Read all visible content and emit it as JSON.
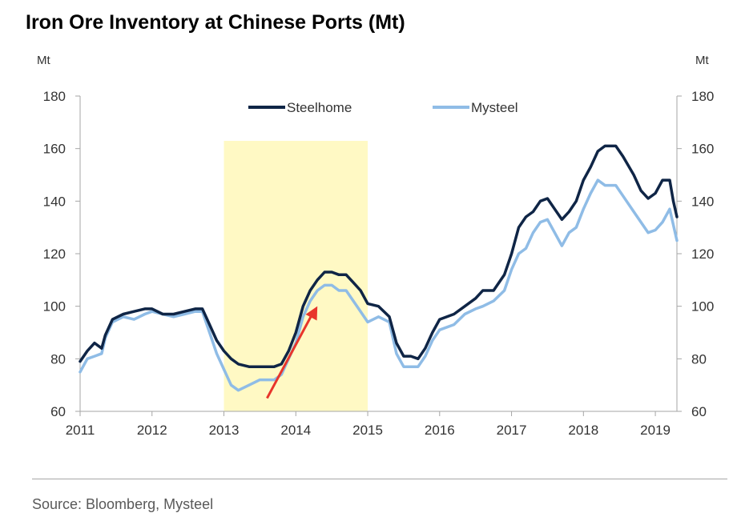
{
  "chart_data": {
    "type": "line",
    "title": "Iron Ore Inventory at Chinese Ports (Mt)",
    "ylabel_left": "Mt",
    "ylabel_right": "Mt",
    "ylim": [
      60,
      180
    ],
    "yticks": [
      60,
      80,
      100,
      120,
      140,
      160,
      180
    ],
    "xlim": [
      2011,
      2019.3
    ],
    "xticks": [
      "2011",
      "2012",
      "2013",
      "2014",
      "2015",
      "2016",
      "2017",
      "2018",
      "2019"
    ],
    "legend_position": "top-center",
    "highlight": {
      "from": 2013,
      "to": 2015,
      "color": "#fff9c4"
    },
    "annotation": {
      "type": "arrow",
      "from": [
        2013.6,
        65
      ],
      "to": [
        2014.3,
        100
      ],
      "color": "#e8352b"
    },
    "series": [
      {
        "name": "Steelhome",
        "color": "#0f2546",
        "points": [
          [
            2011.0,
            79
          ],
          [
            2011.1,
            83
          ],
          [
            2011.2,
            86
          ],
          [
            2011.3,
            84
          ],
          [
            2011.35,
            89
          ],
          [
            2011.45,
            95
          ],
          [
            2011.6,
            97
          ],
          [
            2011.75,
            98
          ],
          [
            2011.9,
            99
          ],
          [
            2012.0,
            99
          ],
          [
            2012.15,
            97
          ],
          [
            2012.3,
            97
          ],
          [
            2012.45,
            98
          ],
          [
            2012.6,
            99
          ],
          [
            2012.7,
            99
          ],
          [
            2012.8,
            93
          ],
          [
            2012.9,
            87
          ],
          [
            2013.0,
            83
          ],
          [
            2013.1,
            80
          ],
          [
            2013.2,
            78
          ],
          [
            2013.35,
            77
          ],
          [
            2013.5,
            77
          ],
          [
            2013.7,
            77
          ],
          [
            2013.8,
            78
          ],
          [
            2013.9,
            83
          ],
          [
            2014.0,
            90
          ],
          [
            2014.1,
            100
          ],
          [
            2014.2,
            106
          ],
          [
            2014.3,
            110
          ],
          [
            2014.4,
            113
          ],
          [
            2014.5,
            113
          ],
          [
            2014.6,
            112
          ],
          [
            2014.7,
            112
          ],
          [
            2014.8,
            109
          ],
          [
            2014.9,
            106
          ],
          [
            2015.0,
            101
          ],
          [
            2015.15,
            100
          ],
          [
            2015.3,
            96
          ],
          [
            2015.4,
            86
          ],
          [
            2015.5,
            81
          ],
          [
            2015.6,
            81
          ],
          [
            2015.7,
            80
          ],
          [
            2015.8,
            84
          ],
          [
            2015.9,
            90
          ],
          [
            2016.0,
            95
          ],
          [
            2016.2,
            97
          ],
          [
            2016.35,
            100
          ],
          [
            2016.5,
            103
          ],
          [
            2016.6,
            106
          ],
          [
            2016.75,
            106
          ],
          [
            2016.9,
            112
          ],
          [
            2017.0,
            120
          ],
          [
            2017.1,
            130
          ],
          [
            2017.2,
            134
          ],
          [
            2017.3,
            136
          ],
          [
            2017.4,
            140
          ],
          [
            2017.5,
            141
          ],
          [
            2017.6,
            137
          ],
          [
            2017.7,
            133
          ],
          [
            2017.8,
            136
          ],
          [
            2017.9,
            140
          ],
          [
            2018.0,
            148
          ],
          [
            2018.1,
            153
          ],
          [
            2018.2,
            159
          ],
          [
            2018.3,
            161
          ],
          [
            2018.45,
            161
          ],
          [
            2018.55,
            157
          ],
          [
            2018.7,
            150
          ],
          [
            2018.8,
            144
          ],
          [
            2018.9,
            141
          ],
          [
            2019.0,
            143
          ],
          [
            2019.1,
            148
          ],
          [
            2019.2,
            148
          ],
          [
            2019.25,
            140
          ],
          [
            2019.3,
            134
          ]
        ]
      },
      {
        "name": "Mysteel",
        "color": "#8fbce6",
        "points": [
          [
            2011.0,
            75
          ],
          [
            2011.1,
            80
          ],
          [
            2011.2,
            81
          ],
          [
            2011.3,
            82
          ],
          [
            2011.35,
            88
          ],
          [
            2011.45,
            94
          ],
          [
            2011.6,
            96
          ],
          [
            2011.75,
            95
          ],
          [
            2011.9,
            97
          ],
          [
            2012.0,
            98
          ],
          [
            2012.15,
            97
          ],
          [
            2012.3,
            96
          ],
          [
            2012.45,
            97
          ],
          [
            2012.6,
            98
          ],
          [
            2012.7,
            98
          ],
          [
            2012.8,
            90
          ],
          [
            2012.9,
            82
          ],
          [
            2013.0,
            76
          ],
          [
            2013.1,
            70
          ],
          [
            2013.2,
            68
          ],
          [
            2013.35,
            70
          ],
          [
            2013.5,
            72
          ],
          [
            2013.7,
            72
          ],
          [
            2013.8,
            74
          ],
          [
            2013.9,
            80
          ],
          [
            2014.0,
            86
          ],
          [
            2014.1,
            96
          ],
          [
            2014.2,
            102
          ],
          [
            2014.3,
            106
          ],
          [
            2014.4,
            108
          ],
          [
            2014.5,
            108
          ],
          [
            2014.6,
            106
          ],
          [
            2014.7,
            106
          ],
          [
            2014.8,
            102
          ],
          [
            2014.9,
            98
          ],
          [
            2015.0,
            94
          ],
          [
            2015.15,
            96
          ],
          [
            2015.3,
            94
          ],
          [
            2015.4,
            82
          ],
          [
            2015.5,
            77
          ],
          [
            2015.6,
            77
          ],
          [
            2015.7,
            77
          ],
          [
            2015.8,
            81
          ],
          [
            2015.9,
            87
          ],
          [
            2016.0,
            91
          ],
          [
            2016.2,
            93
          ],
          [
            2016.35,
            97
          ],
          [
            2016.5,
            99
          ],
          [
            2016.6,
            100
          ],
          [
            2016.75,
            102
          ],
          [
            2016.9,
            106
          ],
          [
            2017.0,
            114
          ],
          [
            2017.1,
            120
          ],
          [
            2017.2,
            122
          ],
          [
            2017.3,
            128
          ],
          [
            2017.4,
            132
          ],
          [
            2017.5,
            133
          ],
          [
            2017.6,
            128
          ],
          [
            2017.7,
            123
          ],
          [
            2017.8,
            128
          ],
          [
            2017.9,
            130
          ],
          [
            2018.0,
            137
          ],
          [
            2018.1,
            143
          ],
          [
            2018.2,
            148
          ],
          [
            2018.3,
            146
          ],
          [
            2018.45,
            146
          ],
          [
            2018.55,
            142
          ],
          [
            2018.7,
            136
          ],
          [
            2018.8,
            132
          ],
          [
            2018.9,
            128
          ],
          [
            2019.0,
            129
          ],
          [
            2019.1,
            132
          ],
          [
            2019.2,
            137
          ],
          [
            2019.25,
            131
          ],
          [
            2019.3,
            125
          ]
        ]
      }
    ],
    "source": "Source: Bloomberg, Mysteel"
  }
}
